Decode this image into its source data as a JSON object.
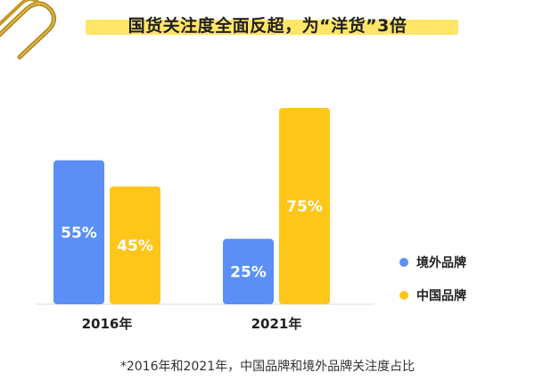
{
  "header": {
    "title": "国货关注度全面反超，为“洋货”3倍"
  },
  "footnote": "*2016年和2021年，中国品牌和境外品牌关注度占比",
  "decoration": {
    "icon": "paperclip-icon"
  },
  "colors": {
    "foreign": "#5b8ff5",
    "domestic": "#ffc61a",
    "highlight": "#ffe666",
    "axis": "#dddddd"
  },
  "chart_data": {
    "type": "bar",
    "categories": [
      "2016年",
      "2021年"
    ],
    "series": [
      {
        "name": "境外品牌",
        "values": [
          55,
          25
        ],
        "labels": [
          "55%",
          "25%"
        ],
        "color": "#5b8ff5"
      },
      {
        "name": "中国品牌",
        "values": [
          45,
          75
        ],
        "labels": [
          "45%",
          "75%"
        ],
        "color": "#ffc61a"
      }
    ],
    "title": "国货关注度全面反超，为“洋货”3倍",
    "xlabel": "",
    "ylabel": "",
    "ylim": [
      0,
      75
    ],
    "grid": false,
    "legend": "right"
  }
}
